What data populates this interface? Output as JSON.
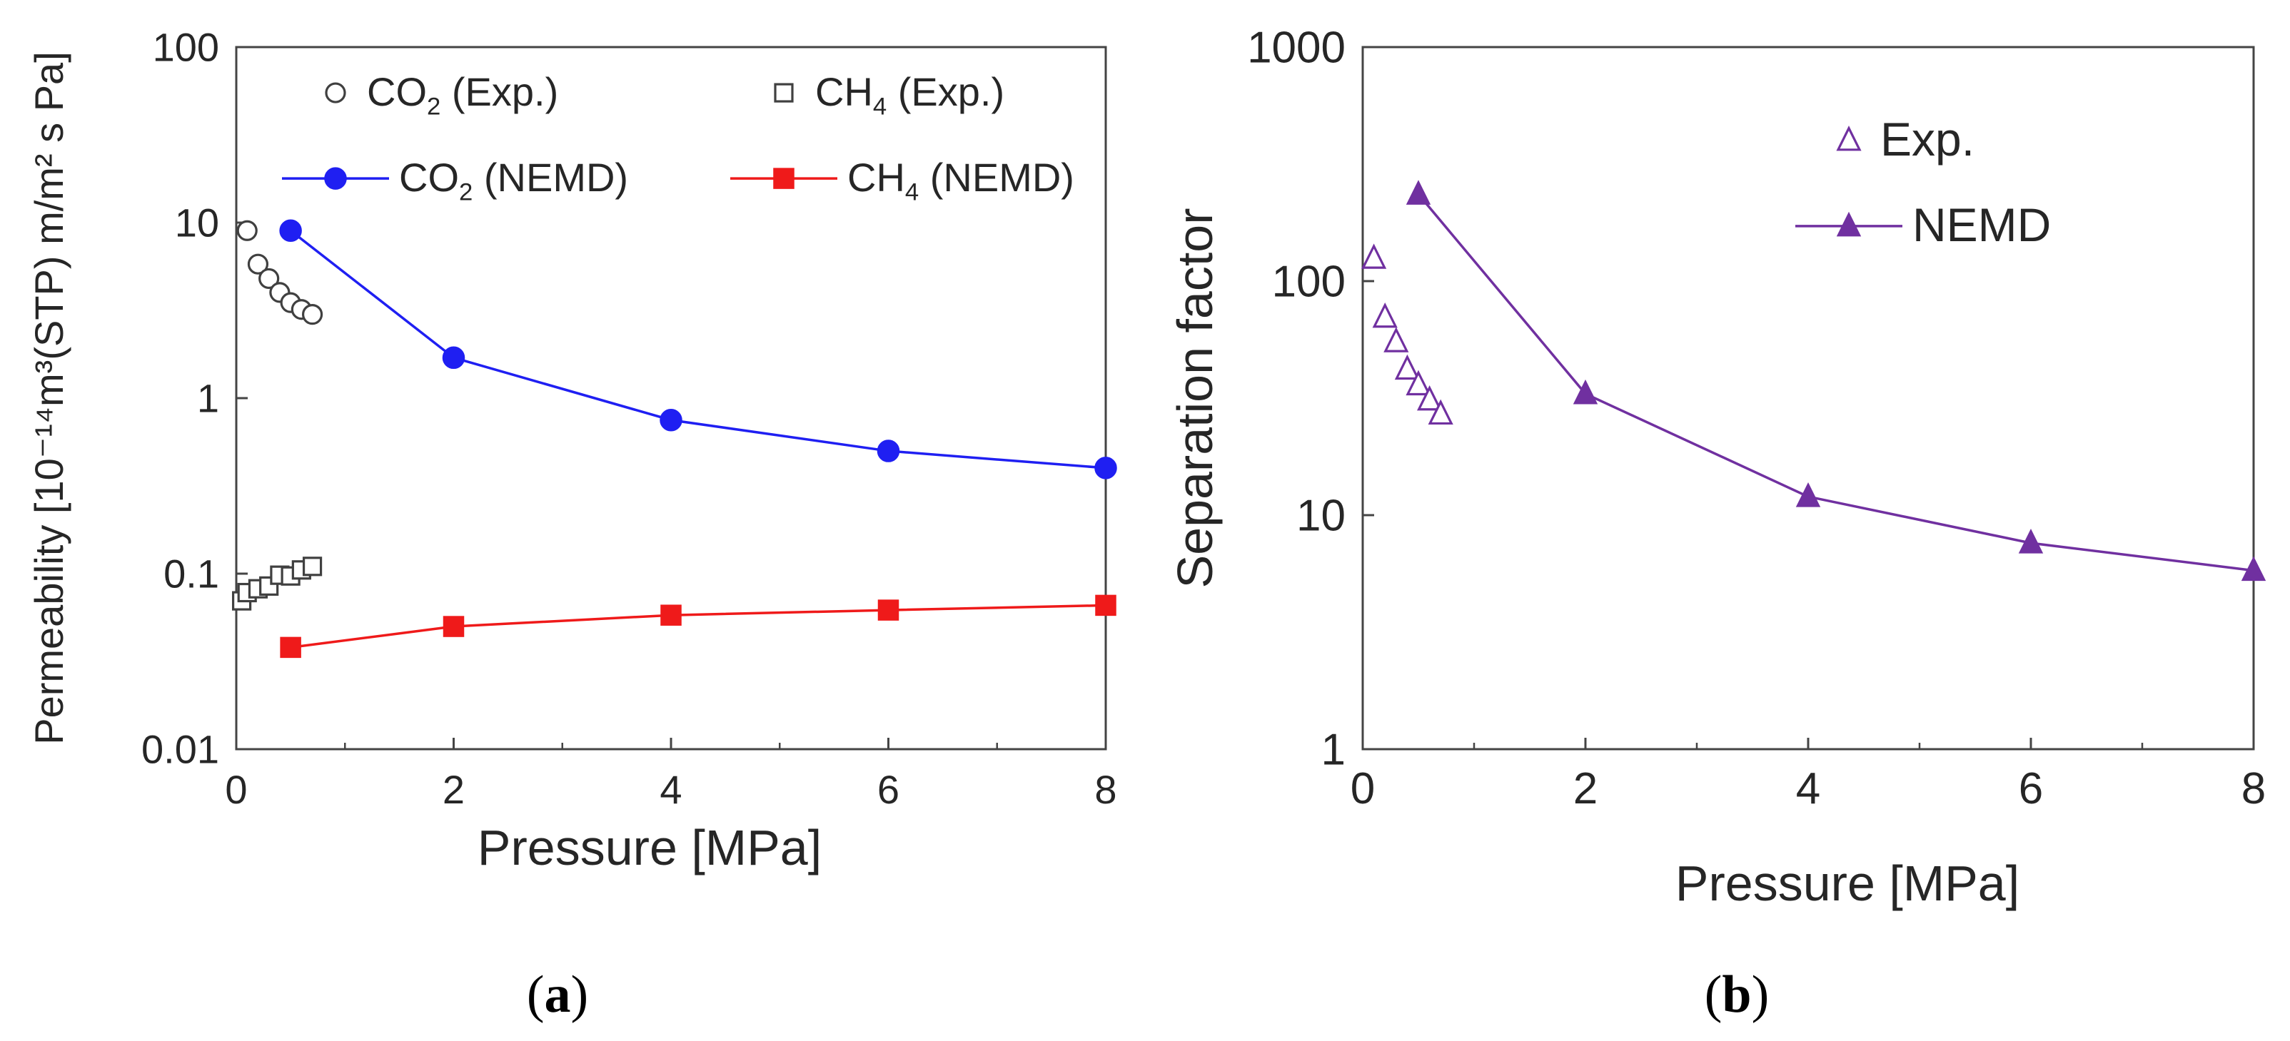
{
  "chart_data": [
    {
      "id": "a",
      "type": "scatter",
      "panel_label": "a",
      "xlabel": "Pressure [MPa]",
      "ylabel": "Permeability  [10⁻¹⁴m³(STP) m/m² s Pa]",
      "yscale": "log",
      "xlim": [
        0,
        8
      ],
      "ylim": [
        0.01,
        100
      ],
      "xticks": [
        "0",
        "2",
        "4",
        "6",
        "8"
      ],
      "yticks": [
        "0.01",
        "0.1",
        "1",
        "10",
        "100"
      ],
      "series": [
        {
          "name": "CO2 (Exp.)",
          "legend_main": "CO",
          "legend_sub": "2",
          "legend_rest": " (Exp.)",
          "marker": "circle-open",
          "color": "#404040",
          "line": false,
          "x": [
            0.1,
            0.2,
            0.3,
            0.4,
            0.5,
            0.6,
            0.7
          ],
          "y": [
            9.0,
            5.8,
            4.8,
            4.0,
            3.5,
            3.2,
            3.0
          ]
        },
        {
          "name": "CH4 (Exp.)",
          "legend_main": "CH",
          "legend_sub": "4",
          "legend_rest": " (Exp.)",
          "marker": "square-open",
          "color": "#404040",
          "line": false,
          "x": [
            0.05,
            0.1,
            0.2,
            0.3,
            0.4,
            0.5,
            0.6,
            0.7
          ],
          "y": [
            0.07,
            0.078,
            0.082,
            0.085,
            0.098,
            0.097,
            0.105,
            0.11
          ]
        },
        {
          "name": "CO2 (NEMD)",
          "legend_main": "CO",
          "legend_sub": "2",
          "legend_rest": " (NEMD)",
          "marker": "circle-filled",
          "color": "#1f1ff2",
          "line": true,
          "x": [
            0.5,
            2,
            4,
            6,
            8
          ],
          "y": [
            9.0,
            1.7,
            0.75,
            0.5,
            0.4
          ]
        },
        {
          "name": "CH4 (NEMD)",
          "legend_main": "CH",
          "legend_sub": "4",
          "legend_rest": " (NEMD)",
          "marker": "square-filled",
          "color": "#ef1a1a",
          "line": true,
          "x": [
            0.5,
            2,
            4,
            6,
            8
          ],
          "y": [
            0.038,
            0.05,
            0.058,
            0.062,
            0.066
          ]
        }
      ]
    },
    {
      "id": "b",
      "type": "scatter",
      "panel_label": "b",
      "xlabel": "Pressure [MPa]",
      "ylabel": "Separation factor",
      "yscale": "log",
      "xlim": [
        0,
        8
      ],
      "ylim": [
        1,
        1000
      ],
      "xticks": [
        "0",
        "2",
        "4",
        "6",
        "8"
      ],
      "yticks": [
        "1",
        "10",
        "100",
        "1000"
      ],
      "series": [
        {
          "name": "Exp.",
          "legend_main": "Exp.",
          "legend_sub": "",
          "legend_rest": "",
          "marker": "triangle-open",
          "color": "#7030a0",
          "line": false,
          "x": [
            0.1,
            0.2,
            0.3,
            0.4,
            0.5,
            0.6,
            0.7
          ],
          "y": [
            125,
            70,
            55,
            42,
            36,
            31,
            27
          ]
        },
        {
          "name": "NEMD",
          "legend_main": "NEMD",
          "legend_sub": "",
          "legend_rest": "",
          "marker": "triangle-filled",
          "color": "#7030a0",
          "line": true,
          "x": [
            0.5,
            2,
            4,
            6,
            8
          ],
          "y": [
            235,
            33,
            12,
            7.6,
            5.8
          ]
        }
      ]
    }
  ]
}
